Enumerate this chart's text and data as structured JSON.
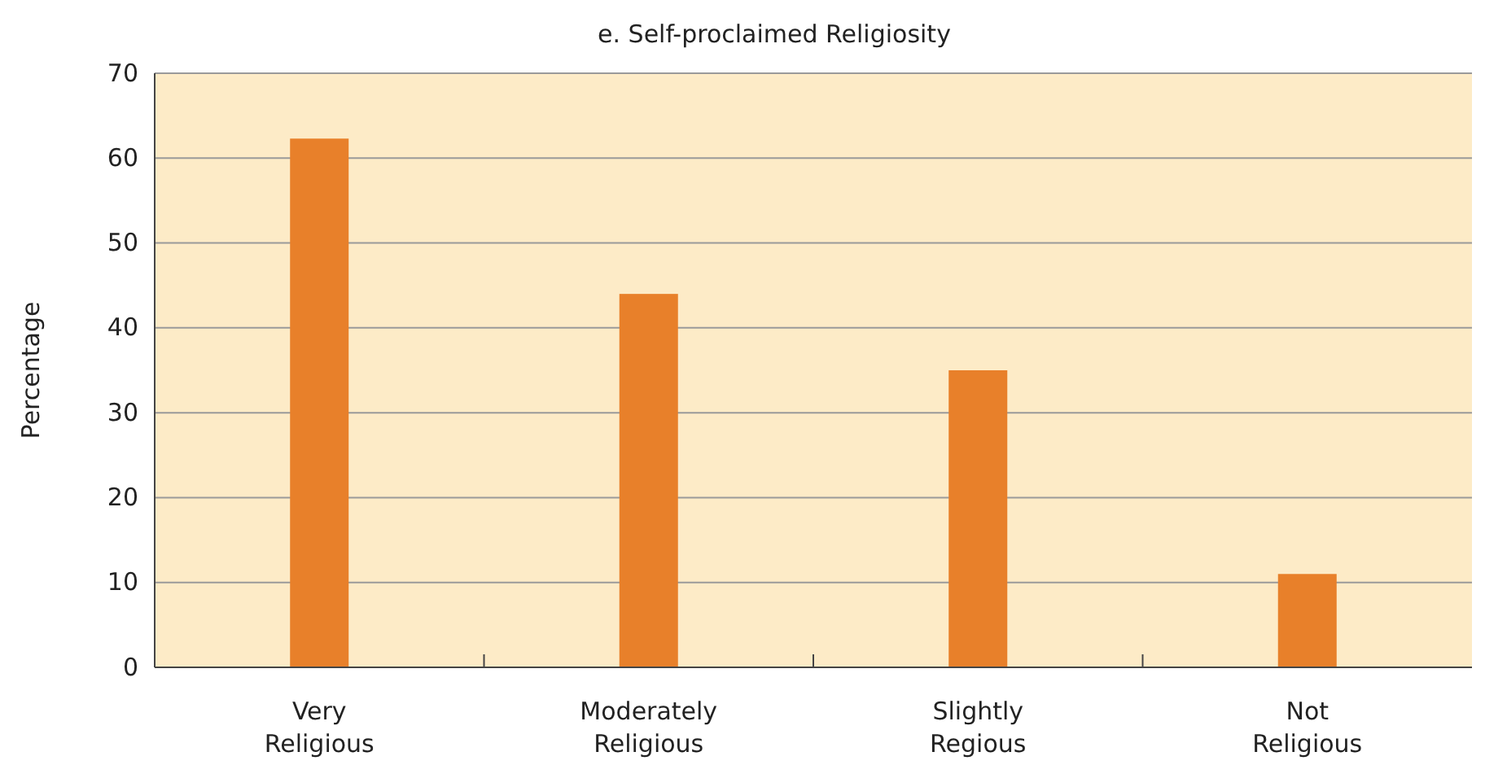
{
  "chart_data": {
    "type": "bar",
    "title": "e. Self-proclaimed Religiosity",
    "ylabel": "Percentage",
    "categories": [
      "Very Religious",
      "Moderately Religious",
      "Slightly Regious",
      "Not Religious"
    ],
    "values": [
      62.3,
      44,
      35,
      11
    ],
    "color": "#e8802a",
    "ylim": [
      0,
      70
    ],
    "yticks": [
      0,
      10,
      20,
      30,
      40,
      50,
      60,
      70
    ],
    "grid": "y"
  }
}
